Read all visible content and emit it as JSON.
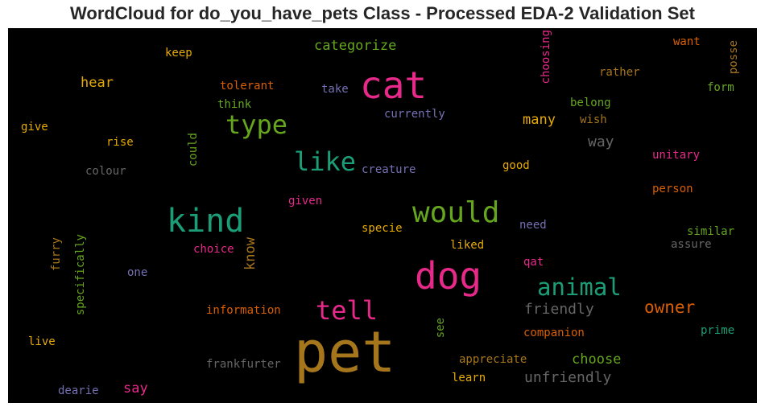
{
  "title": "WordCloud for do_you_have_pets Class - Processed EDA-2 Validation Set",
  "chart_data": {
    "type": "wordcloud",
    "background": "#000000",
    "words": [
      {
        "text": "pet",
        "color": "#a6761d"
      },
      {
        "text": "cat",
        "color": "#e7298a"
      },
      {
        "text": "dog",
        "color": "#e7298a"
      },
      {
        "text": "kind",
        "color": "#1b9e77"
      },
      {
        "text": "would",
        "color": "#66a61e"
      },
      {
        "text": "type",
        "color": "#66a61e"
      },
      {
        "text": "like",
        "color": "#1b9e77"
      },
      {
        "text": "animal",
        "color": "#1b9e77"
      },
      {
        "text": "tell",
        "color": "#e7298a"
      },
      {
        "text": "owner",
        "color": "#d95f02"
      },
      {
        "text": "categorize",
        "color": "#66a61e"
      },
      {
        "text": "friendly",
        "color": "#666666"
      },
      {
        "text": "unfriendly",
        "color": "#666666"
      },
      {
        "text": "choose",
        "color": "#66a61e"
      },
      {
        "text": "hear",
        "color": "#e6ab02"
      },
      {
        "text": "many",
        "color": "#e6ab02"
      },
      {
        "text": "way",
        "color": "#666666"
      },
      {
        "text": "know",
        "color": "#a6761d"
      },
      {
        "text": "say",
        "color": "#e7298a"
      },
      {
        "text": "keep",
        "color": "#e6ab02"
      },
      {
        "text": "tolerant",
        "color": "#d95f02"
      },
      {
        "text": "take",
        "color": "#7570b3"
      },
      {
        "text": "think",
        "color": "#66a61e"
      },
      {
        "text": "currently",
        "color": "#7570b3"
      },
      {
        "text": "give",
        "color": "#e6ab02"
      },
      {
        "text": "rise",
        "color": "#e6ab02"
      },
      {
        "text": "could",
        "color": "#66a61e"
      },
      {
        "text": "colour",
        "color": "#666666"
      },
      {
        "text": "creature",
        "color": "#7570b3"
      },
      {
        "text": "good",
        "color": "#e6ab02"
      },
      {
        "text": "given",
        "color": "#e7298a"
      },
      {
        "text": "specie",
        "color": "#e6ab02"
      },
      {
        "text": "liked",
        "color": "#e6ab02"
      },
      {
        "text": "need",
        "color": "#7570b3"
      },
      {
        "text": "choice",
        "color": "#e7298a"
      },
      {
        "text": "qat",
        "color": "#e7298a"
      },
      {
        "text": "furry",
        "color": "#a6761d"
      },
      {
        "text": "specifically",
        "color": "#66a61e"
      },
      {
        "text": "one",
        "color": "#7570b3"
      },
      {
        "text": "information",
        "color": "#d95f02"
      },
      {
        "text": "see",
        "color": "#66a61e"
      },
      {
        "text": "companion",
        "color": "#d95f02"
      },
      {
        "text": "live",
        "color": "#e6ab02"
      },
      {
        "text": "appreciate",
        "color": "#a6761d"
      },
      {
        "text": "frankfurter",
        "color": "#666666"
      },
      {
        "text": "learn",
        "color": "#e6ab02"
      },
      {
        "text": "dearie",
        "color": "#7570b3"
      },
      {
        "text": "choosing",
        "color": "#e7298a"
      },
      {
        "text": "want",
        "color": "#d95f02"
      },
      {
        "text": "posse",
        "color": "#a6761d"
      },
      {
        "text": "rather",
        "color": "#a6761d"
      },
      {
        "text": "form",
        "color": "#66a61e"
      },
      {
        "text": "belong",
        "color": "#66a61e"
      },
      {
        "text": "wish",
        "color": "#a6761d"
      },
      {
        "text": "unitary",
        "color": "#e7298a"
      },
      {
        "text": "person",
        "color": "#d95f02"
      },
      {
        "text": "similar",
        "color": "#66a61e"
      },
      {
        "text": "assure",
        "color": "#666666"
      },
      {
        "text": "prime",
        "color": "#1b9e77"
      }
    ]
  }
}
